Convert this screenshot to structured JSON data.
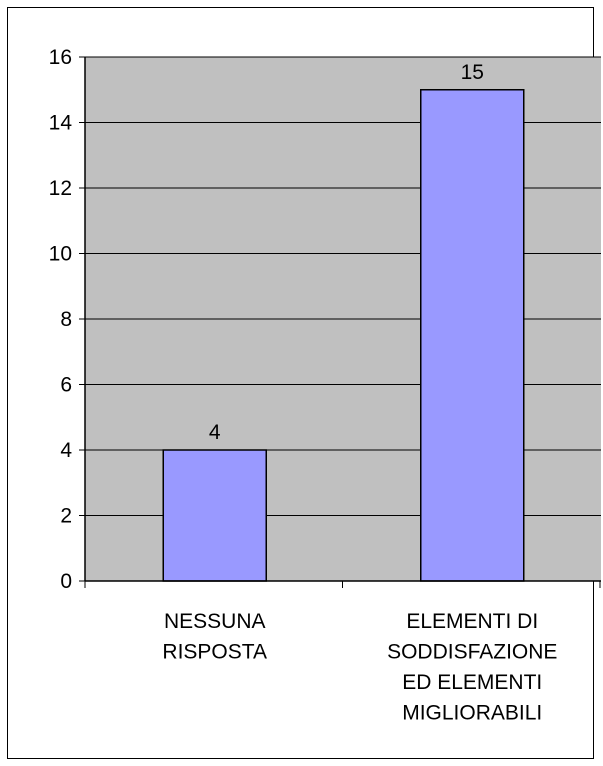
{
  "chart_data": {
    "type": "bar",
    "categories": [
      [
        "NESSUNA",
        "RISPOSTA"
      ],
      [
        "ELEMENTI DI",
        "SODDISFAZIONE",
        "ED ELEMENTI",
        "MIGLIORABILI"
      ]
    ],
    "values": [
      4,
      15
    ],
    "data_labels": [
      "4",
      "15"
    ],
    "title": "",
    "xlabel": "",
    "ylabel": "",
    "ylim": [
      0,
      16
    ],
    "yticks": [
      0,
      2,
      4,
      6,
      8,
      10,
      12,
      14,
      16
    ],
    "grid": true,
    "legend": "none",
    "colors": {
      "plot_background": "#c0c0c0",
      "bar_fill": "#9999ff",
      "bar_border": "#000000",
      "gridline": "#000000"
    }
  }
}
